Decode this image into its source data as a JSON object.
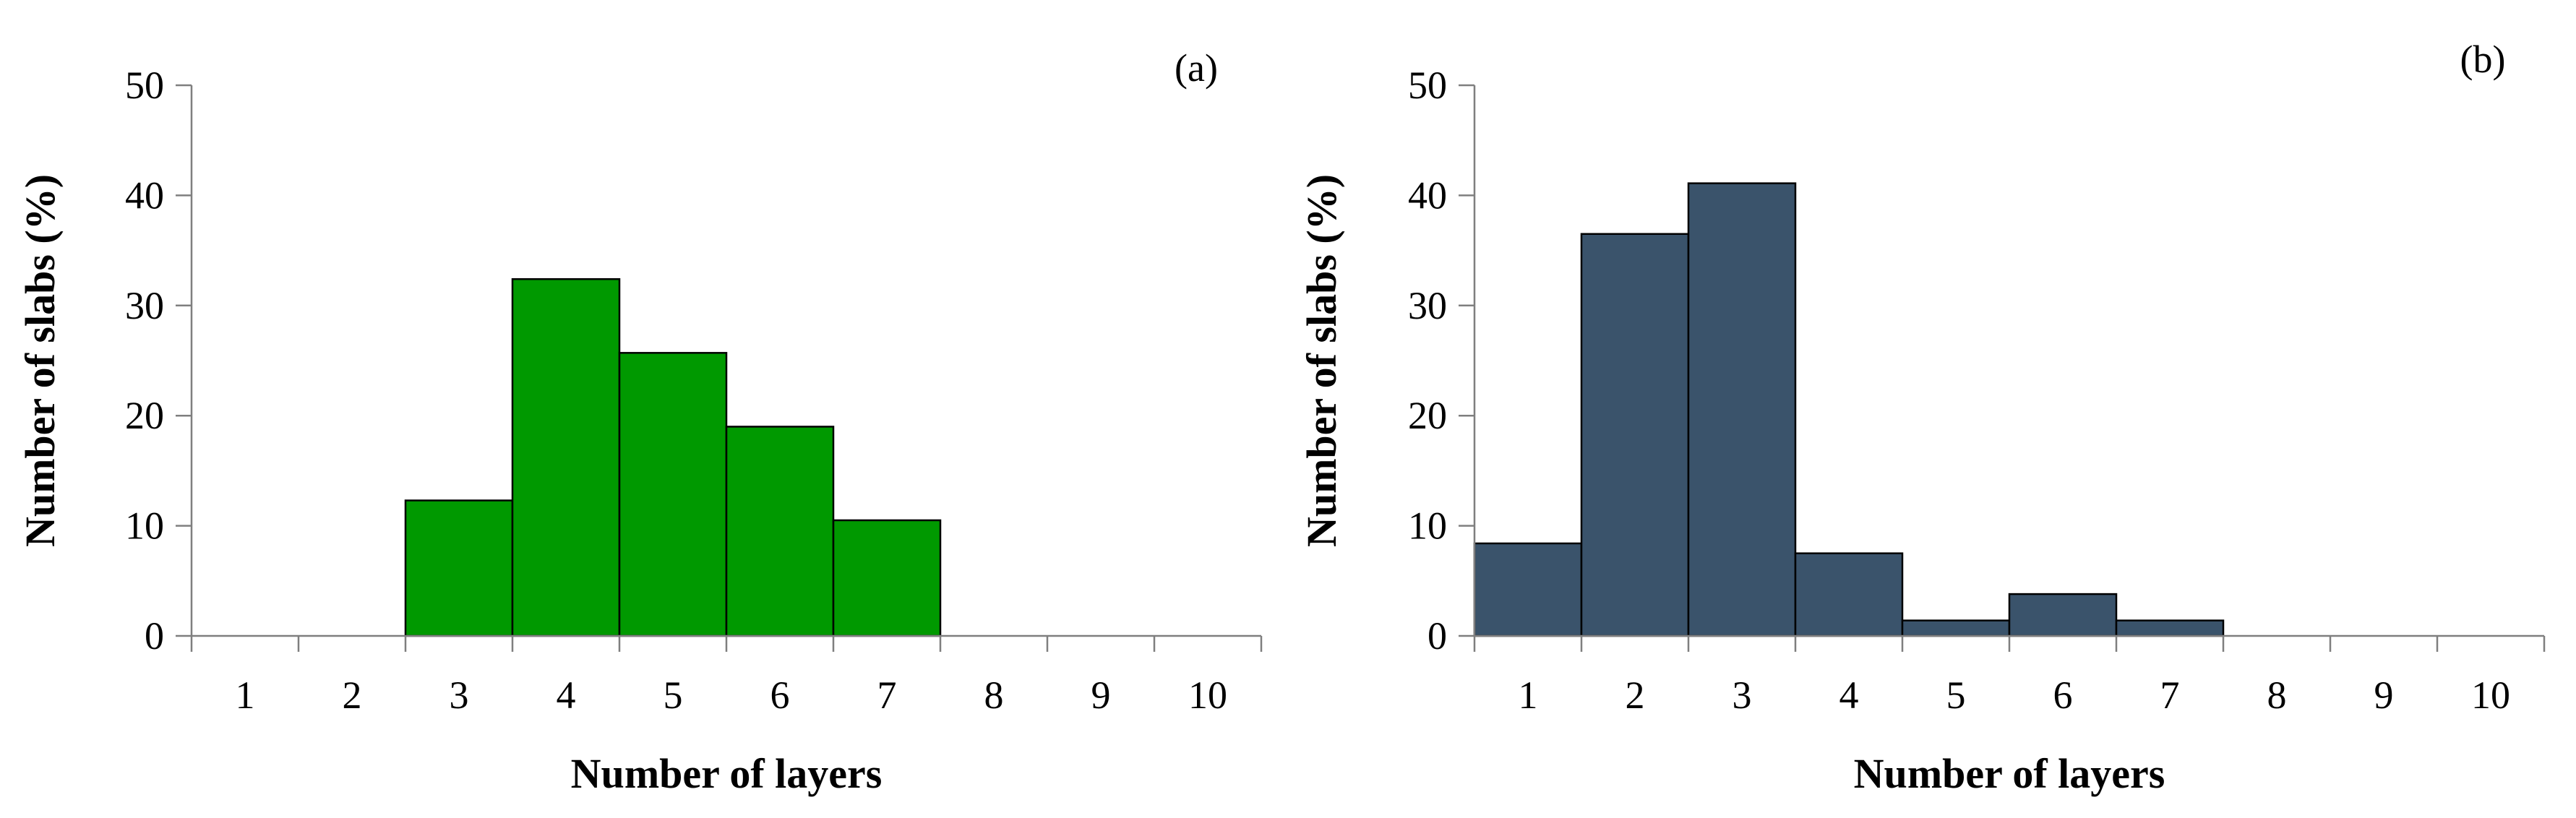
{
  "chart_data": [
    {
      "type": "bar",
      "panel_label": "(a)",
      "categories": [
        "1",
        "2",
        "3",
        "4",
        "5",
        "6",
        "7",
        "8",
        "9",
        "10"
      ],
      "values": [
        0,
        0,
        12.3,
        32.4,
        25.7,
        19.0,
        10.5,
        0,
        0,
        0
      ],
      "xlabel": "Number of layers",
      "ylabel": "Number of slabs (%)",
      "ylim": [
        0,
        50
      ],
      "yticks": [
        "0",
        "10",
        "20",
        "30",
        "40",
        "50"
      ],
      "grid": false,
      "bar_color": "#009900"
    },
    {
      "type": "bar",
      "panel_label": "(b)",
      "categories": [
        "1",
        "2",
        "3",
        "4",
        "5",
        "6",
        "7",
        "8",
        "9",
        "10"
      ],
      "values": [
        8.4,
        36.5,
        41.1,
        7.5,
        1.4,
        3.8,
        1.4,
        0,
        0,
        0
      ],
      "xlabel": "Number of layers",
      "ylabel": "Number of slabs (%)",
      "ylim": [
        0,
        50
      ],
      "yticks": [
        "0",
        "10",
        "20",
        "30",
        "40",
        "50"
      ],
      "grid": false,
      "bar_color": "#3a536b"
    }
  ]
}
